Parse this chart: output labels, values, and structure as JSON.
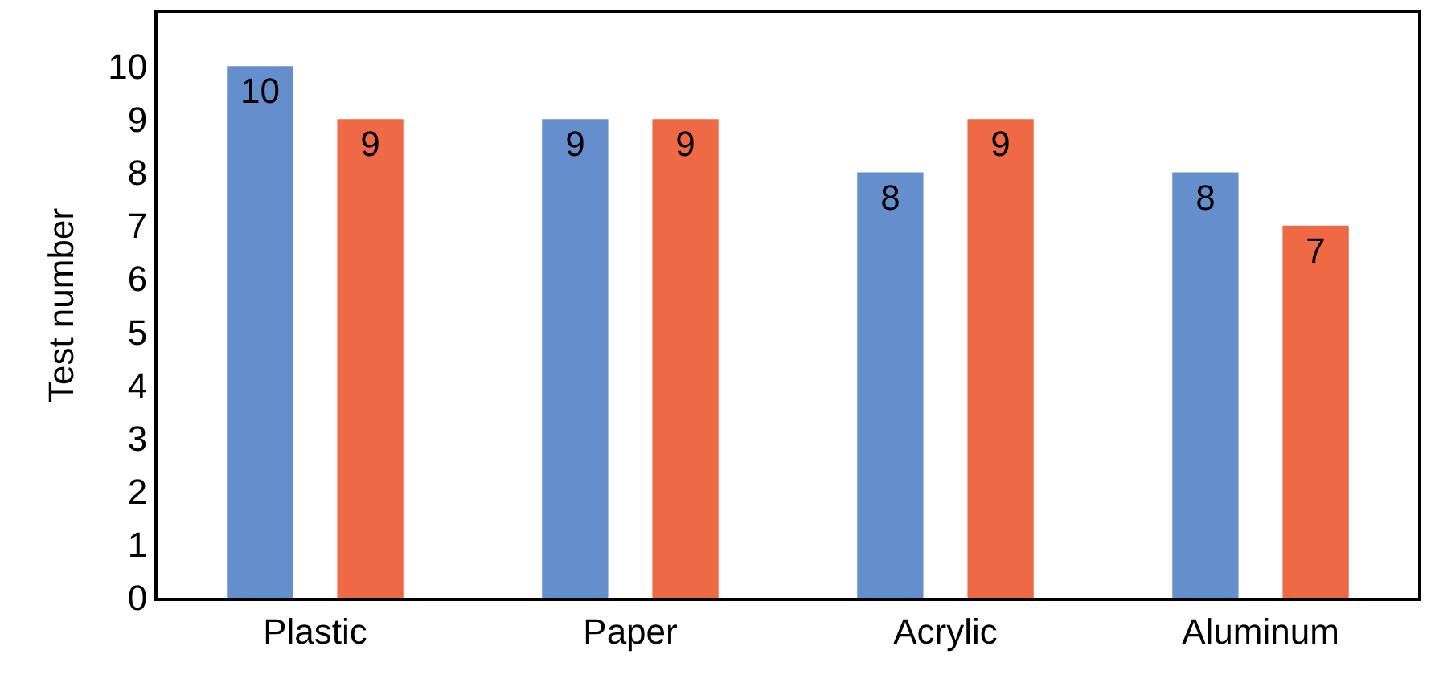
{
  "chart_data": {
    "type": "bar",
    "ylabel": "Test number",
    "categories": [
      "Plastic",
      "Paper",
      "Acrylic",
      "Aluminum"
    ],
    "series": [
      {
        "color": "#658fcc",
        "values": [
          10,
          9,
          8,
          8
        ]
      },
      {
        "color": "#f06945",
        "values": [
          9,
          9,
          9,
          7
        ]
      }
    ],
    "ylim": [
      0,
      11
    ],
    "yticks": [
      0,
      1,
      2,
      3,
      4,
      5,
      6,
      7,
      8,
      9,
      10
    ],
    "data_labels": true
  }
}
